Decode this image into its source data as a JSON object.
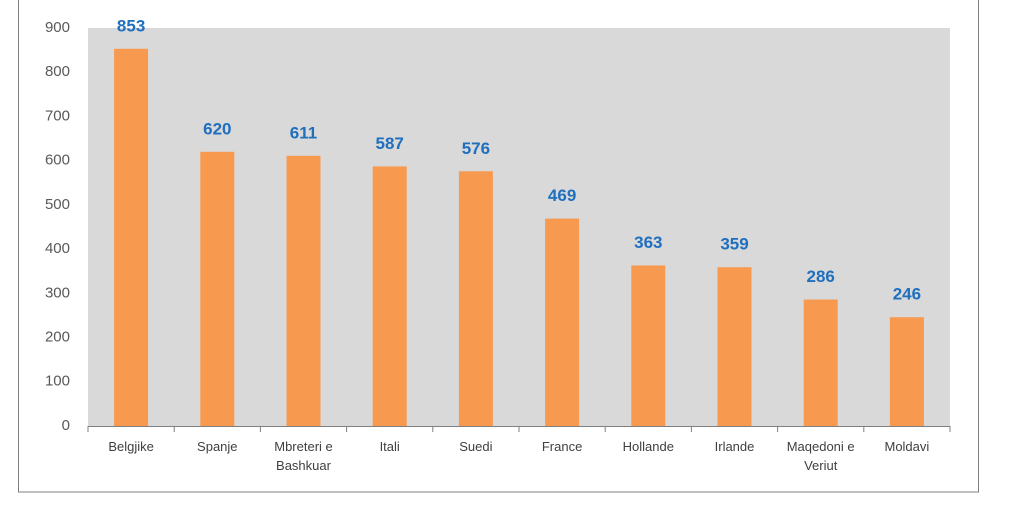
{
  "chart_data": {
    "type": "bar",
    "categories": [
      "Belgjike",
      "Spanje",
      "Mbreteri e Bashkuar",
      "Itali",
      "Suedi",
      "France",
      "Hollande",
      "Irlande",
      "Maqedoni e Veriut",
      "Moldavi"
    ],
    "values": [
      853,
      620,
      611,
      587,
      576,
      469,
      363,
      359,
      286,
      246
    ],
    "color": "#f7994f",
    "label_color": "#1f6fbf",
    "plot_background": "#d9d9d9",
    "ylim": [
      0,
      900
    ],
    "yticks": [
      0,
      100,
      200,
      300,
      400,
      500,
      600,
      700,
      800,
      900
    ],
    "grid": false
  }
}
